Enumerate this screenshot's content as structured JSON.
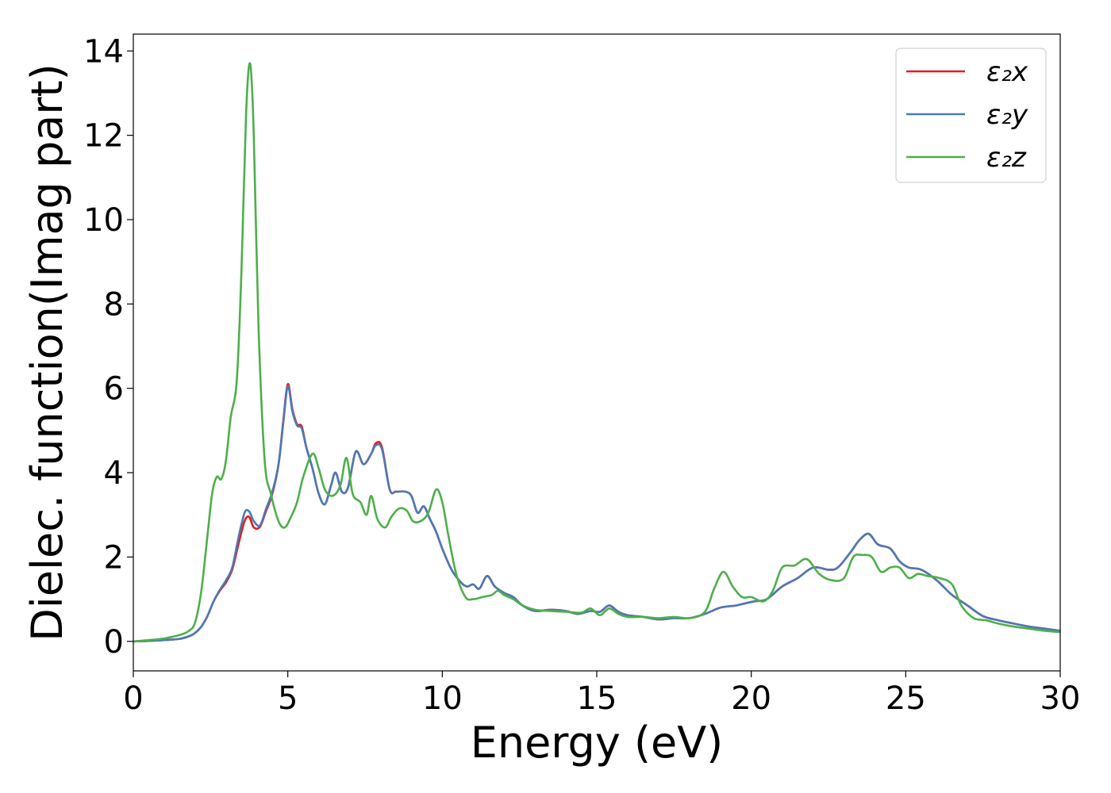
{
  "chart_data": {
    "type": "line",
    "title": "",
    "xlabel": "Energy (eV)",
    "ylabel": "Dielec. function(Imag part)",
    "xlim": [
      0,
      30
    ],
    "ylim": [
      -0.7,
      14.4
    ],
    "xticks": [
      0,
      5,
      10,
      15,
      20,
      25,
      30
    ],
    "yticks": [
      0,
      2,
      4,
      6,
      8,
      10,
      12,
      14
    ],
    "grid": false,
    "legend_position": "top-right",
    "series": [
      {
        "name": "ε₂x",
        "color": "#e41a1c",
        "points": [
          [
            0,
            0
          ],
          [
            0.5,
            0.01
          ],
          [
            1,
            0.03
          ],
          [
            1.5,
            0.06
          ],
          [
            1.8,
            0.12
          ],
          [
            2,
            0.2
          ],
          [
            2.2,
            0.35
          ],
          [
            2.4,
            0.6
          ],
          [
            2.6,
            0.95
          ],
          [
            2.8,
            1.2
          ],
          [
            3,
            1.4
          ],
          [
            3.2,
            1.7
          ],
          [
            3.4,
            2.3
          ],
          [
            3.6,
            2.85
          ],
          [
            3.75,
            2.95
          ],
          [
            3.9,
            2.7
          ],
          [
            4.1,
            2.72
          ],
          [
            4.3,
            3.1
          ],
          [
            4.5,
            3.5
          ],
          [
            4.7,
            4.2
          ],
          [
            4.85,
            5.2
          ],
          [
            5.0,
            6.1
          ],
          [
            5.15,
            5.5
          ],
          [
            5.3,
            5.15
          ],
          [
            5.45,
            5.1
          ],
          [
            5.6,
            4.6
          ],
          [
            5.8,
            4.1
          ],
          [
            6.0,
            3.5
          ],
          [
            6.2,
            3.25
          ],
          [
            6.4,
            3.7
          ],
          [
            6.55,
            4.0
          ],
          [
            6.75,
            3.55
          ],
          [
            6.95,
            3.65
          ],
          [
            7.2,
            4.5
          ],
          [
            7.45,
            4.2
          ],
          [
            7.7,
            4.45
          ],
          [
            7.85,
            4.7
          ],
          [
            8.05,
            4.6
          ],
          [
            8.3,
            3.6
          ],
          [
            8.5,
            3.55
          ],
          [
            8.8,
            3.55
          ],
          [
            9.0,
            3.45
          ],
          [
            9.2,
            3.05
          ],
          [
            9.4,
            3.2
          ],
          [
            9.6,
            2.9
          ],
          [
            9.8,
            2.6
          ],
          [
            10.0,
            2.2
          ],
          [
            10.3,
            1.7
          ],
          [
            10.6,
            1.4
          ],
          [
            10.8,
            1.3
          ],
          [
            11.0,
            1.35
          ],
          [
            11.2,
            1.25
          ],
          [
            11.45,
            1.55
          ],
          [
            11.7,
            1.3
          ],
          [
            12.0,
            1.15
          ],
          [
            12.3,
            1.05
          ],
          [
            12.6,
            0.85
          ],
          [
            13.0,
            0.72
          ],
          [
            13.5,
            0.75
          ],
          [
            14.0,
            0.72
          ],
          [
            14.4,
            0.65
          ],
          [
            14.8,
            0.72
          ],
          [
            15.1,
            0.7
          ],
          [
            15.4,
            0.85
          ],
          [
            15.7,
            0.7
          ],
          [
            16.0,
            0.62
          ],
          [
            16.5,
            0.58
          ],
          [
            17.0,
            0.52
          ],
          [
            17.5,
            0.55
          ],
          [
            18.0,
            0.55
          ],
          [
            18.5,
            0.65
          ],
          [
            19.0,
            0.8
          ],
          [
            19.5,
            0.85
          ],
          [
            19.8,
            0.9
          ],
          [
            20.1,
            0.95
          ],
          [
            20.5,
            1.0
          ],
          [
            21.0,
            1.3
          ],
          [
            21.5,
            1.5
          ],
          [
            22.0,
            1.75
          ],
          [
            22.5,
            1.7
          ],
          [
            22.8,
            1.75
          ],
          [
            23.2,
            2.1
          ],
          [
            23.5,
            2.4
          ],
          [
            23.8,
            2.55
          ],
          [
            24.1,
            2.3
          ],
          [
            24.5,
            2.2
          ],
          [
            24.8,
            1.9
          ],
          [
            25.1,
            1.75
          ],
          [
            25.5,
            1.7
          ],
          [
            26.0,
            1.45
          ],
          [
            26.5,
            1.1
          ],
          [
            27.0,
            0.85
          ],
          [
            27.5,
            0.6
          ],
          [
            28.0,
            0.5
          ],
          [
            28.5,
            0.42
          ],
          [
            29.0,
            0.35
          ],
          [
            29.5,
            0.3
          ],
          [
            30.0,
            0.25
          ]
        ]
      },
      {
        "name": "ε₂y",
        "color": "#4a7ab5",
        "points": [
          [
            0,
            0
          ],
          [
            0.5,
            0.01
          ],
          [
            1,
            0.03
          ],
          [
            1.5,
            0.06
          ],
          [
            1.8,
            0.12
          ],
          [
            2,
            0.2
          ],
          [
            2.2,
            0.35
          ],
          [
            2.4,
            0.6
          ],
          [
            2.6,
            0.95
          ],
          [
            2.8,
            1.22
          ],
          [
            3,
            1.45
          ],
          [
            3.2,
            1.75
          ],
          [
            3.4,
            2.45
          ],
          [
            3.6,
            3.05
          ],
          [
            3.75,
            3.08
          ],
          [
            3.9,
            2.85
          ],
          [
            4.1,
            2.75
          ],
          [
            4.3,
            3.15
          ],
          [
            4.5,
            3.55
          ],
          [
            4.7,
            4.2
          ],
          [
            4.85,
            5.15
          ],
          [
            5.0,
            6.05
          ],
          [
            5.15,
            5.45
          ],
          [
            5.3,
            5.12
          ],
          [
            5.45,
            5.05
          ],
          [
            5.6,
            4.6
          ],
          [
            5.8,
            4.1
          ],
          [
            6.0,
            3.5
          ],
          [
            6.2,
            3.25
          ],
          [
            6.4,
            3.7
          ],
          [
            6.55,
            4.0
          ],
          [
            6.75,
            3.55
          ],
          [
            6.95,
            3.65
          ],
          [
            7.2,
            4.5
          ],
          [
            7.45,
            4.2
          ],
          [
            7.7,
            4.45
          ],
          [
            7.85,
            4.65
          ],
          [
            8.05,
            4.55
          ],
          [
            8.3,
            3.6
          ],
          [
            8.5,
            3.55
          ],
          [
            8.8,
            3.55
          ],
          [
            9.0,
            3.45
          ],
          [
            9.2,
            3.05
          ],
          [
            9.4,
            3.2
          ],
          [
            9.6,
            2.9
          ],
          [
            9.8,
            2.6
          ],
          [
            10.0,
            2.2
          ],
          [
            10.3,
            1.7
          ],
          [
            10.6,
            1.4
          ],
          [
            10.8,
            1.3
          ],
          [
            11.0,
            1.35
          ],
          [
            11.2,
            1.25
          ],
          [
            11.45,
            1.55
          ],
          [
            11.7,
            1.3
          ],
          [
            12.0,
            1.15
          ],
          [
            12.3,
            1.05
          ],
          [
            12.6,
            0.85
          ],
          [
            13.0,
            0.72
          ],
          [
            13.5,
            0.75
          ],
          [
            14.0,
            0.72
          ],
          [
            14.4,
            0.65
          ],
          [
            14.8,
            0.72
          ],
          [
            15.1,
            0.7
          ],
          [
            15.4,
            0.85
          ],
          [
            15.7,
            0.7
          ],
          [
            16.0,
            0.62
          ],
          [
            16.5,
            0.58
          ],
          [
            17.0,
            0.52
          ],
          [
            17.5,
            0.55
          ],
          [
            18.0,
            0.55
          ],
          [
            18.5,
            0.65
          ],
          [
            19.0,
            0.8
          ],
          [
            19.5,
            0.85
          ],
          [
            19.8,
            0.9
          ],
          [
            20.1,
            0.95
          ],
          [
            20.5,
            1.0
          ],
          [
            21.0,
            1.3
          ],
          [
            21.5,
            1.5
          ],
          [
            22.0,
            1.75
          ],
          [
            22.5,
            1.7
          ],
          [
            22.8,
            1.75
          ],
          [
            23.2,
            2.1
          ],
          [
            23.5,
            2.4
          ],
          [
            23.8,
            2.55
          ],
          [
            24.1,
            2.3
          ],
          [
            24.5,
            2.2
          ],
          [
            24.8,
            1.9
          ],
          [
            25.1,
            1.75
          ],
          [
            25.5,
            1.7
          ],
          [
            26.0,
            1.45
          ],
          [
            26.5,
            1.1
          ],
          [
            27.0,
            0.85
          ],
          [
            27.5,
            0.6
          ],
          [
            28.0,
            0.5
          ],
          [
            28.5,
            0.42
          ],
          [
            29.0,
            0.35
          ],
          [
            29.5,
            0.3
          ],
          [
            30.0,
            0.25
          ]
        ]
      },
      {
        "name": "ε₂z",
        "color": "#4daf4a",
        "points": [
          [
            0,
            0
          ],
          [
            0.5,
            0.03
          ],
          [
            1,
            0.07
          ],
          [
            1.5,
            0.15
          ],
          [
            1.8,
            0.25
          ],
          [
            2,
            0.45
          ],
          [
            2.2,
            1.2
          ],
          [
            2.4,
            2.5
          ],
          [
            2.55,
            3.5
          ],
          [
            2.7,
            3.9
          ],
          [
            2.85,
            3.85
          ],
          [
            3.0,
            4.3
          ],
          [
            3.15,
            5.3
          ],
          [
            3.35,
            6.2
          ],
          [
            3.5,
            8.8
          ],
          [
            3.65,
            12.5
          ],
          [
            3.78,
            13.7
          ],
          [
            3.9,
            12.0
          ],
          [
            4.05,
            7.5
          ],
          [
            4.25,
            4.3
          ],
          [
            4.45,
            3.5
          ],
          [
            4.7,
            2.85
          ],
          [
            4.9,
            2.7
          ],
          [
            5.1,
            2.95
          ],
          [
            5.3,
            3.3
          ],
          [
            5.5,
            3.9
          ],
          [
            5.8,
            4.45
          ],
          [
            6.0,
            4.1
          ],
          [
            6.2,
            3.6
          ],
          [
            6.45,
            3.45
          ],
          [
            6.7,
            3.7
          ],
          [
            6.9,
            4.35
          ],
          [
            7.1,
            3.5
          ],
          [
            7.35,
            3.3
          ],
          [
            7.55,
            3.0
          ],
          [
            7.7,
            3.45
          ],
          [
            7.9,
            2.9
          ],
          [
            8.15,
            2.7
          ],
          [
            8.35,
            2.95
          ],
          [
            8.6,
            3.15
          ],
          [
            8.85,
            3.1
          ],
          [
            9.05,
            2.85
          ],
          [
            9.3,
            2.85
          ],
          [
            9.55,
            3.05
          ],
          [
            9.8,
            3.6
          ],
          [
            10.0,
            3.3
          ],
          [
            10.2,
            2.5
          ],
          [
            10.45,
            1.6
          ],
          [
            10.75,
            1.05
          ],
          [
            11.0,
            1.0
          ],
          [
            11.3,
            1.05
          ],
          [
            11.6,
            1.1
          ],
          [
            11.8,
            1.2
          ],
          [
            12.0,
            1.1
          ],
          [
            12.3,
            1.0
          ],
          [
            12.6,
            0.85
          ],
          [
            13.0,
            0.75
          ],
          [
            13.5,
            0.72
          ],
          [
            14.0,
            0.7
          ],
          [
            14.5,
            0.68
          ],
          [
            14.8,
            0.78
          ],
          [
            15.1,
            0.62
          ],
          [
            15.4,
            0.78
          ],
          [
            15.7,
            0.65
          ],
          [
            16.0,
            0.58
          ],
          [
            16.5,
            0.58
          ],
          [
            17.0,
            0.55
          ],
          [
            17.5,
            0.58
          ],
          [
            18.0,
            0.55
          ],
          [
            18.5,
            0.7
          ],
          [
            18.8,
            1.25
          ],
          [
            19.1,
            1.65
          ],
          [
            19.4,
            1.3
          ],
          [
            19.7,
            1.05
          ],
          [
            20.0,
            1.05
          ],
          [
            20.4,
            0.95
          ],
          [
            20.7,
            1.2
          ],
          [
            21.0,
            1.75
          ],
          [
            21.4,
            1.8
          ],
          [
            21.8,
            1.95
          ],
          [
            22.2,
            1.6
          ],
          [
            22.6,
            1.45
          ],
          [
            23.0,
            1.5
          ],
          [
            23.3,
            2.0
          ],
          [
            23.6,
            2.05
          ],
          [
            23.9,
            2.0
          ],
          [
            24.2,
            1.65
          ],
          [
            24.5,
            1.75
          ],
          [
            24.8,
            1.75
          ],
          [
            25.1,
            1.5
          ],
          [
            25.4,
            1.6
          ],
          [
            25.7,
            1.55
          ],
          [
            26.1,
            1.5
          ],
          [
            26.5,
            1.35
          ],
          [
            26.8,
            0.85
          ],
          [
            27.2,
            0.55
          ],
          [
            27.6,
            0.5
          ],
          [
            28.0,
            0.42
          ],
          [
            28.5,
            0.35
          ],
          [
            29.0,
            0.3
          ],
          [
            29.5,
            0.25
          ],
          [
            30.0,
            0.22
          ]
        ]
      }
    ]
  }
}
